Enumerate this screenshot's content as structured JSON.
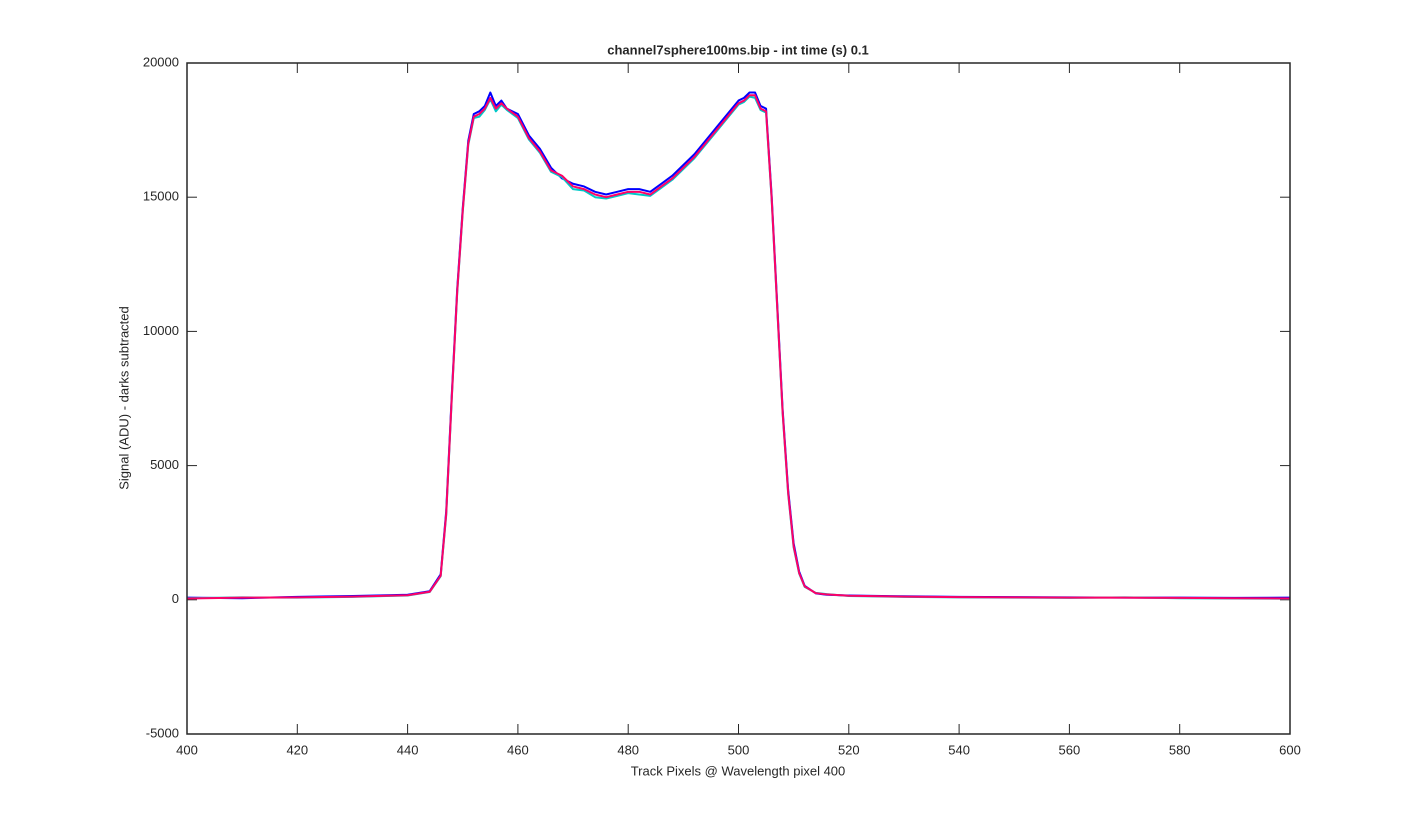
{
  "chart_data": {
    "type": "line",
    "title": "channel7sphere100ms.bip - int time (s) 0.1",
    "xlabel": "Track Pixels @ Wavelength pixel 400",
    "ylabel": "Signal (ADU) - darks subtracted",
    "xlim": [
      400,
      600
    ],
    "xticks": [
      400,
      420,
      440,
      460,
      480,
      500,
      520,
      540,
      560,
      580,
      600
    ],
    "ylim": [
      -5000,
      20000
    ],
    "yticks": [
      -5000,
      0,
      5000,
      10000,
      15000,
      20000
    ],
    "grid": false,
    "x": [
      400,
      410,
      420,
      430,
      440,
      444,
      446,
      447,
      448,
      449,
      450,
      451,
      452,
      453,
      454,
      455,
      456,
      457,
      458,
      460,
      462,
      464,
      466,
      468,
      470,
      472,
      474,
      476,
      478,
      480,
      482,
      484,
      486,
      488,
      490,
      492,
      494,
      496,
      498,
      500,
      501,
      502,
      503,
      504,
      505,
      506,
      507,
      508,
      509,
      510,
      511,
      512,
      514,
      516,
      520,
      530,
      540,
      550,
      560,
      570,
      580,
      590,
      600
    ],
    "series": [
      {
        "color": "#0000ff",
        "values": [
          80,
          60,
          110,
          140,
          190,
          320,
          950,
          3300,
          7600,
          11600,
          14600,
          17100,
          18100,
          18200,
          18400,
          18900,
          18400,
          18600,
          18300,
          18100,
          17300,
          16800,
          16100,
          15700,
          15500,
          15400,
          15200,
          15100,
          15200,
          15300,
          15300,
          15200,
          15500,
          15800,
          16200,
          16600,
          17100,
          17600,
          18100,
          18600,
          18700,
          18900,
          18900,
          18400,
          18300,
          15100,
          11100,
          7100,
          4100,
          2100,
          1050,
          520,
          240,
          190,
          160,
          130,
          110,
          100,
          90,
          80,
          80,
          70,
          80
        ]
      },
      {
        "color": "#00c8c8",
        "values": [
          60,
          90,
          80,
          110,
          160,
          290,
          880,
          3150,
          7450,
          11450,
          14450,
          16950,
          17950,
          18000,
          18250,
          18650,
          18200,
          18450,
          18250,
          17950,
          17150,
          16650,
          15950,
          15750,
          15300,
          15250,
          15000,
          14950,
          15050,
          15150,
          15100,
          15050,
          15350,
          15650,
          16050,
          16450,
          16950,
          17450,
          17950,
          18450,
          18550,
          18750,
          18700,
          18250,
          18150,
          14950,
          10950,
          6950,
          3950,
          1950,
          980,
          480,
          260,
          210,
          140,
          110,
          90,
          80,
          70,
          90,
          60,
          50,
          40
        ]
      },
      {
        "color": "#ff0066",
        "values": [
          50,
          80,
          90,
          120,
          170,
          300,
          900,
          3200,
          7500,
          11500,
          14500,
          17000,
          18000,
          18100,
          18300,
          18700,
          18300,
          18500,
          18300,
          18000,
          17200,
          16700,
          16000,
          15800,
          15400,
          15300,
          15100,
          15000,
          15100,
          15200,
          15200,
          15100,
          15400,
          15700,
          16100,
          16500,
          17000,
          17500,
          18000,
          18500,
          18600,
          18800,
          18800,
          18300,
          18200,
          15000,
          11000,
          7000,
          4000,
          2000,
          1000,
          500,
          250,
          200,
          150,
          120,
          100,
          90,
          80,
          80,
          70,
          60,
          50
        ]
      }
    ]
  }
}
